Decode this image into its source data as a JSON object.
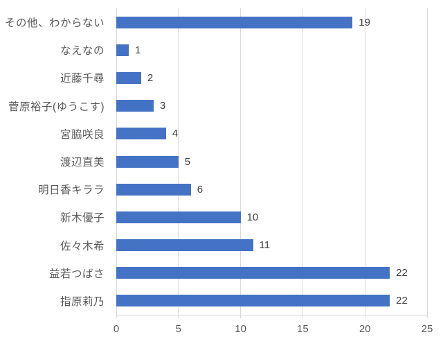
{
  "chart_data": {
    "type": "bar",
    "orientation": "horizontal",
    "title": "",
    "xlabel": "",
    "ylabel": "",
    "categories": [
      "その他、わからない",
      "なえなの",
      "近藤千尋",
      "菅原裕子(ゆうこす)",
      "宮脇咲良",
      "渡辺直美",
      "明日香キララ",
      "新木優子",
      "佐々木希",
      "益若つばさ",
      "指原莉乃"
    ],
    "values": [
      19,
      1,
      2,
      3,
      4,
      5,
      6,
      10,
      11,
      22,
      22
    ],
    "data_labels": [
      "19",
      "1",
      "2",
      "3",
      "4",
      "5",
      "6",
      "10",
      "11",
      "22",
      "22"
    ],
    "xlim": [
      0,
      25
    ],
    "x_ticks": [
      "0",
      "5",
      "10",
      "15",
      "20",
      "25"
    ],
    "grid": "vertical",
    "legend_position": "none",
    "colors": {
      "bar": "#4472c4",
      "gridline": "#d9d9d9",
      "axis_line": "#d9d9d9",
      "category_label_text": "#595959",
      "tick_label_text": "#595959",
      "data_label_text": "#404040",
      "background": "#ffffff"
    }
  }
}
